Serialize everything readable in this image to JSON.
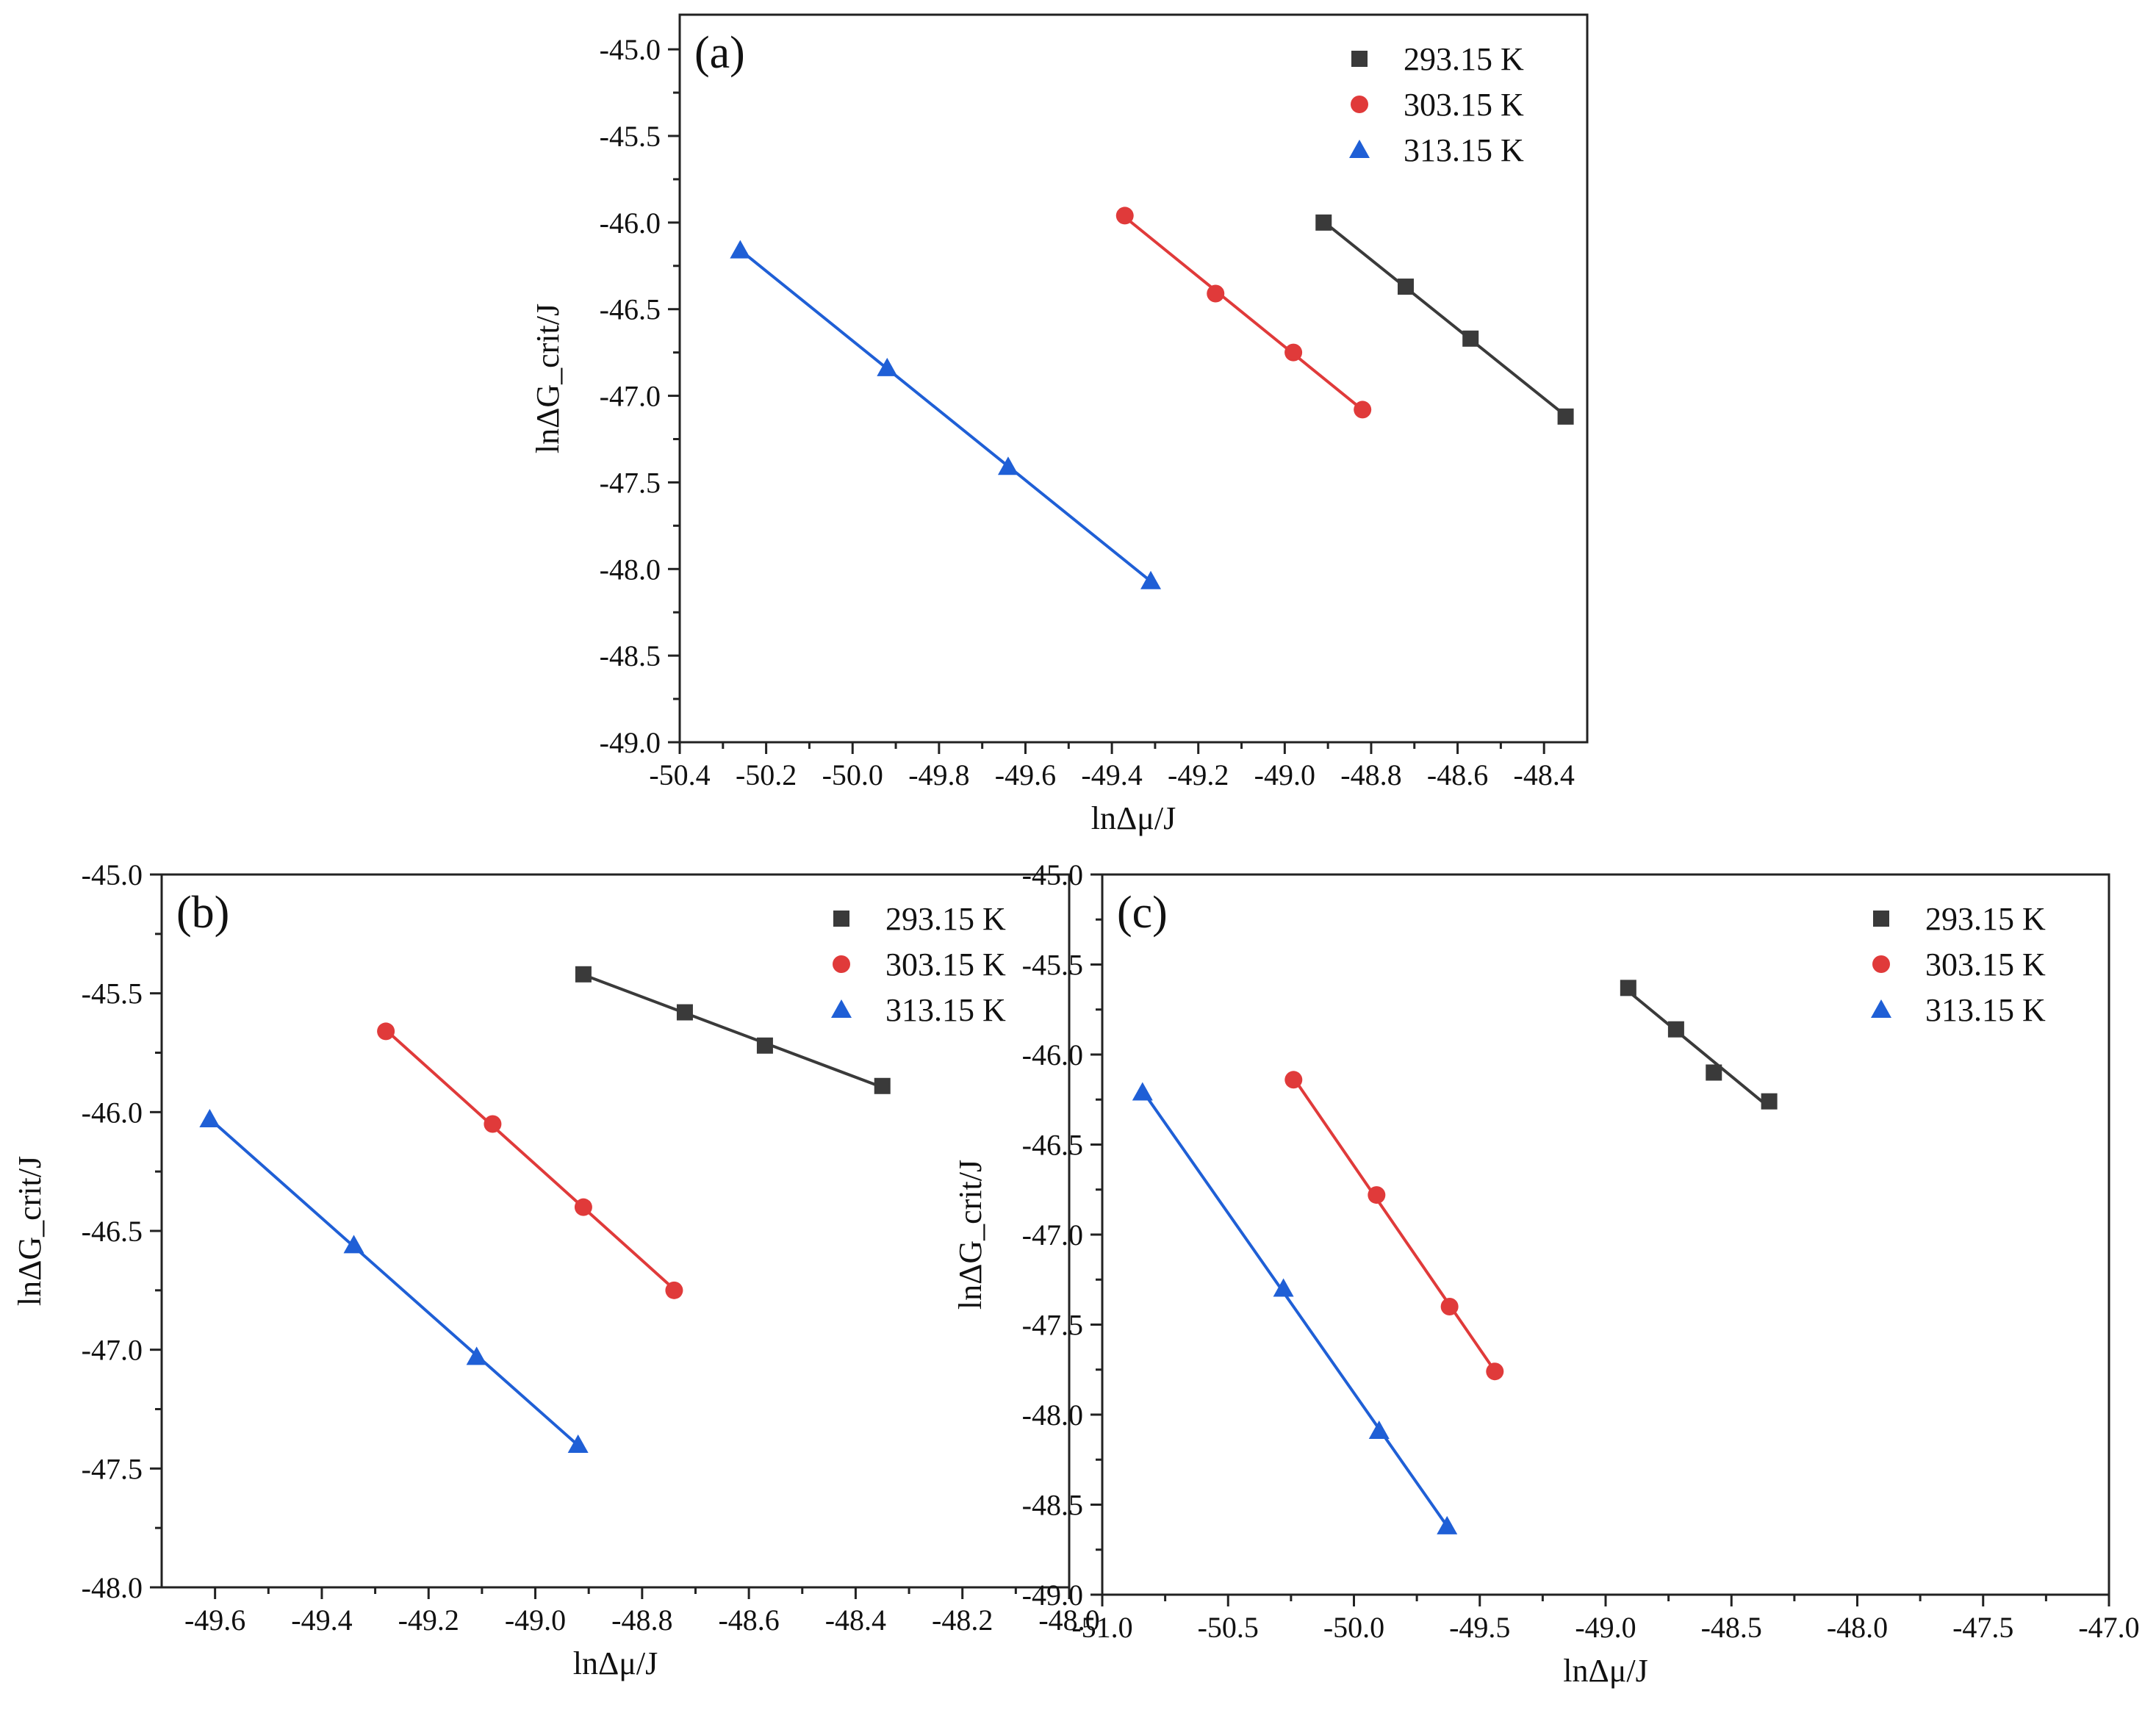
{
  "figure": {
    "legend": [
      "293.15 K",
      "303.15 K",
      "313.15 K"
    ],
    "colors": {
      "293.15 K": "#3a3a3a",
      "303.15 K": "#e03a3a",
      "313.15 K": "#1f5fd6"
    },
    "markers": {
      "293.15 K": "square",
      "303.15 K": "circle",
      "313.15 K": "triangle"
    }
  },
  "chart_data": [
    {
      "panel": "(a)",
      "type": "scatter",
      "title": "",
      "xlabel": "lnΔμ/J",
      "ylabel": "lnΔG_crit/J",
      "xlim": [
        -50.4,
        -48.3
      ],
      "ylim": [
        -49.0,
        -44.8
      ],
      "xticks": [
        -50.4,
        -50.2,
        -50.0,
        -49.8,
        -49.6,
        -49.4,
        -49.2,
        -49.0,
        -48.8,
        -48.6,
        -48.4
      ],
      "yticks": [
        -49.0,
        -48.5,
        -48.0,
        -47.5,
        -47.0,
        -46.5,
        -46.0,
        -45.5,
        -45.0
      ],
      "series": [
        {
          "name": "293.15 K",
          "x": [
            -48.91,
            -48.72,
            -48.57,
            -48.35
          ],
          "y": [
            -46.0,
            -46.37,
            -46.67,
            -47.12
          ]
        },
        {
          "name": "303.15 K",
          "x": [
            -49.37,
            -49.16,
            -48.98,
            -48.82
          ],
          "y": [
            -45.96,
            -46.41,
            -46.75,
            -47.08
          ]
        },
        {
          "name": "313.15 K",
          "x": [
            -50.26,
            -49.92,
            -49.64,
            -49.31
          ],
          "y": [
            -46.16,
            -46.84,
            -47.41,
            -48.07
          ]
        }
      ]
    },
    {
      "panel": "(b)",
      "type": "scatter",
      "title": "",
      "xlabel": "lnΔμ/J",
      "ylabel": "lnΔG_crit/J",
      "xlim": [
        -49.7,
        -48.0
      ],
      "ylim": [
        -48.0,
        -45.0
      ],
      "xticks": [
        -49.6,
        -49.4,
        -49.2,
        -49.0,
        -48.8,
        -48.6,
        -48.4,
        -48.2,
        -48.0
      ],
      "yticks": [
        -48.0,
        -47.5,
        -47.0,
        -46.5,
        -46.0,
        -45.5,
        -45.0
      ],
      "series": [
        {
          "name": "293.15 K",
          "x": [
            -48.91,
            -48.72,
            -48.57,
            -48.35
          ],
          "y": [
            -45.42,
            -45.58,
            -45.72,
            -45.89
          ]
        },
        {
          "name": "303.15 K",
          "x": [
            -49.28,
            -49.08,
            -48.91,
            -48.74
          ],
          "y": [
            -45.66,
            -46.05,
            -46.4,
            -46.75
          ]
        },
        {
          "name": "313.15 K",
          "x": [
            -49.61,
            -49.34,
            -49.11,
            -48.92
          ],
          "y": [
            -46.03,
            -46.56,
            -47.03,
            -47.4
          ]
        }
      ]
    },
    {
      "panel": "(c)",
      "type": "scatter",
      "title": "",
      "xlabel": "lnΔμ/J",
      "ylabel": "lnΔG_crit/J",
      "xlim": [
        -51.0,
        -47.0
      ],
      "ylim": [
        -49.0,
        -45.0
      ],
      "xticks": [
        -51.0,
        -50.5,
        -50.0,
        -49.5,
        -49.0,
        -48.5,
        -48.0,
        -47.5,
        -47.0
      ],
      "yticks": [
        -49.0,
        -48.5,
        -48.0,
        -47.5,
        -47.0,
        -46.5,
        -46.0,
        -45.5,
        -45.0
      ],
      "series": [
        {
          "name": "293.15 K",
          "x": [
            -48.91,
            -48.72,
            -48.57,
            -48.35
          ],
          "y": [
            -45.63,
            -45.86,
            -46.1,
            -46.26
          ]
        },
        {
          "name": "303.15 K",
          "x": [
            -50.24,
            -49.91,
            -49.62,
            -49.44
          ],
          "y": [
            -46.14,
            -46.78,
            -47.4,
            -47.76
          ]
        },
        {
          "name": "313.15 K",
          "x": [
            -50.84,
            -50.28,
            -49.9,
            -49.63
          ],
          "y": [
            -46.21,
            -47.3,
            -48.09,
            -48.62
          ]
        }
      ]
    }
  ]
}
